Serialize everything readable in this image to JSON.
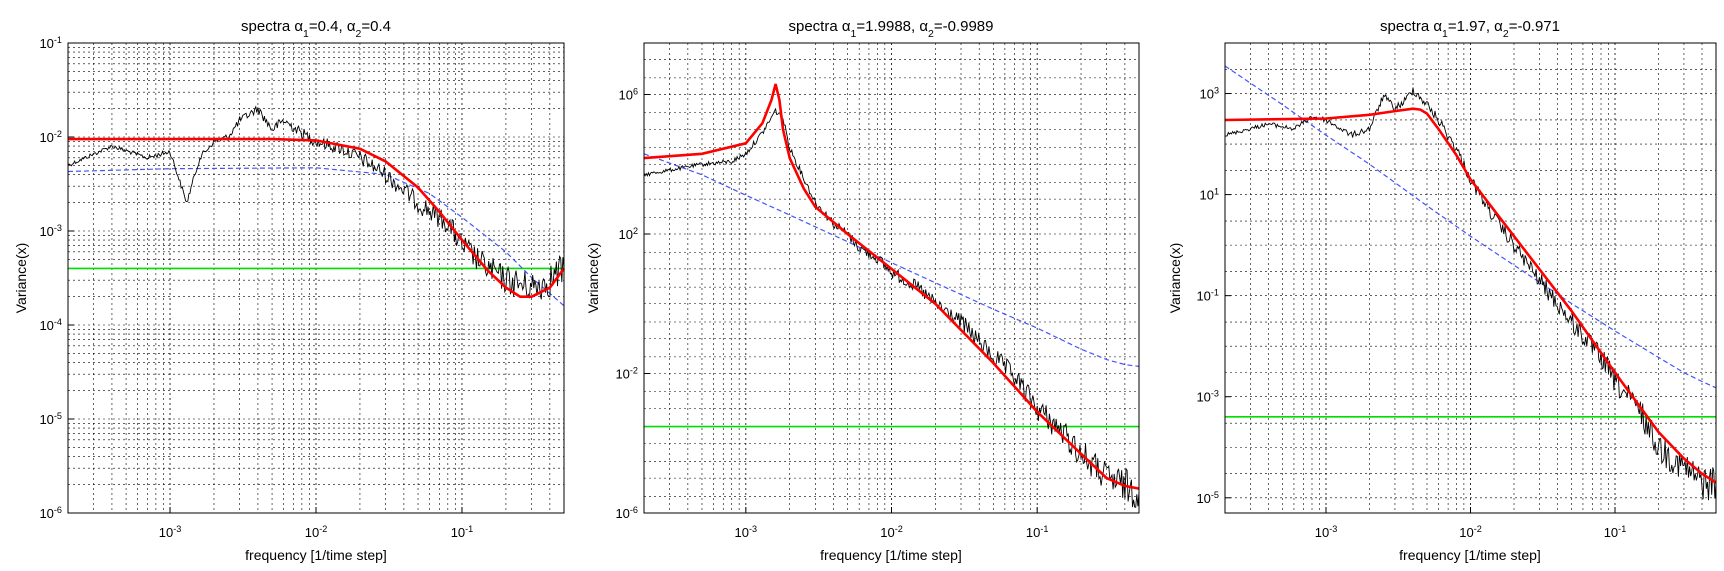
{
  "chart_data": [
    {
      "type": "line",
      "title_prefix": "spectra α",
      "title": "spectra α1=0.4, α2=0.4",
      "title_parts": [
        "spectra α",
        "1",
        "=0.4, α",
        "2",
        "=0.4"
      ],
      "xlabel": "frequency [1/time step]",
      "ylabel": "Variance(x)",
      "xscale": "log",
      "yscale": "log",
      "xlim": [
        0.0002,
        0.5
      ],
      "ylim": [
        1e-06,
        0.1
      ],
      "xticks": [
        0.001,
        0.01,
        0.1
      ],
      "xticklabels": [
        [
          "10",
          "-3"
        ],
        [
          "10",
          "-2"
        ],
        [
          "10",
          "-1"
        ]
      ],
      "yticks": [
        1e-06,
        1e-05,
        0.0001,
        0.001,
        0.01,
        0.1
      ],
      "yticklabels": [
        [
          "10",
          "-6"
        ],
        [
          "10",
          "-5"
        ],
        [
          "10",
          "-4"
        ],
        [
          "10",
          "-3"
        ],
        [
          "10",
          "-2"
        ],
        [
          "10",
          "-1"
        ]
      ],
      "grid": true,
      "series": [
        {
          "style": "red-smooth",
          "color": "#ff0000",
          "x": [
            0.0002,
            0.001,
            0.005,
            0.01,
            0.02,
            0.03,
            0.05,
            0.07,
            0.1,
            0.15,
            0.2,
            0.25,
            0.3,
            0.4,
            0.5
          ],
          "y": [
            0.0095,
            0.0095,
            0.0095,
            0.0092,
            0.0075,
            0.0055,
            0.0029,
            0.0016,
            0.0008,
            0.00038,
            0.00025,
            0.0002,
            0.0002,
            0.00025,
            0.0004
          ]
        },
        {
          "style": "blue-dashed",
          "color": "#4455ff",
          "x": [
            0.0002,
            0.001,
            0.01,
            0.03,
            0.06,
            0.1,
            0.2,
            0.3,
            0.5
          ],
          "y": [
            0.0043,
            0.0046,
            0.0047,
            0.004,
            0.0025,
            0.0014,
            0.0006,
            0.00032,
            0.00016
          ]
        },
        {
          "style": "green",
          "color": "#00dd00",
          "x": [
            0.0002,
            0.5
          ],
          "y": [
            0.0004,
            0.0004
          ]
        },
        {
          "style": "black-noisy",
          "color": "#000000",
          "x": [
            0.0002,
            0.0004,
            0.0007,
            0.001,
            0.0013,
            0.0016,
            0.002,
            0.0025,
            0.003,
            0.004,
            0.005,
            0.006,
            0.008,
            0.01,
            0.015,
            0.02,
            0.03,
            0.05,
            0.08,
            0.1,
            0.15,
            0.2,
            0.3,
            0.4,
            0.5
          ],
          "y": [
            0.005,
            0.008,
            0.006,
            0.007,
            0.002,
            0.006,
            0.009,
            0.01,
            0.015,
            0.02,
            0.012,
            0.015,
            0.011,
            0.009,
            0.0075,
            0.006,
            0.004,
            0.002,
            0.0012,
            0.0007,
            0.0004,
            0.0003,
            0.00025,
            0.0003,
            0.0004
          ]
        }
      ]
    },
    {
      "type": "line",
      "title": "spectra α1=1.9988, α2=-0.9989",
      "title_parts": [
        "spectra α",
        "1",
        "=1.9988, α",
        "2",
        "=-0.9989"
      ],
      "xlabel": "frequency [1/time step]",
      "ylabel": "Variance(x)",
      "xscale": "log",
      "yscale": "log",
      "xlim": [
        0.0002,
        0.5
      ],
      "ylim": [
        1e-06,
        30000000
      ],
      "xticks": [
        0.001,
        0.01,
        0.1
      ],
      "xticklabels": [
        [
          "10",
          "-3"
        ],
        [
          "10",
          "-2"
        ],
        [
          "10",
          "-1"
        ]
      ],
      "yticks": [
        1e-06,
        0.01,
        100,
        1000000
      ],
      "yticklabels": [
        [
          "10",
          "-6"
        ],
        [
          "10",
          "-2"
        ],
        [
          "10",
          "2"
        ],
        [
          "10",
          "6"
        ]
      ],
      "grid": true,
      "series": [
        {
          "style": "red-smooth",
          "color": "#ff0000",
          "x": [
            0.0002,
            0.0005,
            0.001,
            0.0013,
            0.0015,
            0.0016,
            0.0017,
            0.0018,
            0.002,
            0.0025,
            0.003,
            0.005,
            0.01,
            0.02,
            0.05,
            0.1,
            0.2,
            0.3,
            0.4,
            0.5
          ],
          "y": [
            15000,
            20000,
            40000,
            150000,
            700000,
            2000000,
            700000,
            100000,
            15000,
            2000,
            600,
            100,
            10,
            1,
            0.02,
            0.0008,
            5e-05,
            1e-05,
            6e-06,
            5e-06
          ]
        },
        {
          "style": "blue-dashed",
          "color": "#4455ff",
          "x": [
            0.0002,
            0.0005,
            0.001,
            0.002,
            0.005,
            0.01,
            0.02,
            0.05,
            0.1,
            0.2,
            0.3,
            0.4,
            0.5
          ],
          "y": [
            20000,
            5000,
            1300,
            350,
            60,
            15,
            4,
            0.7,
            0.2,
            0.05,
            0.025,
            0.018,
            0.016
          ]
        },
        {
          "style": "green",
          "color": "#00dd00",
          "x": [
            0.0002,
            0.5
          ],
          "y": [
            0.0003,
            0.0003
          ]
        },
        {
          "style": "black-noisy",
          "color": "#000000",
          "x": [
            0.0002,
            0.0005,
            0.0008,
            0.001,
            0.0013,
            0.0016,
            0.0018,
            0.002,
            0.0025,
            0.003,
            0.004,
            0.005,
            0.006,
            0.008,
            0.01,
            0.015,
            0.02,
            0.03,
            0.05,
            0.07,
            0.1,
            0.15,
            0.2,
            0.3,
            0.4,
            0.5
          ],
          "y": [
            5000,
            10000,
            12000,
            20000,
            80000,
            350000,
            200000,
            30000,
            4000,
            800,
            200,
            100,
            40,
            20,
            8,
            3,
            1,
            0.3,
            0.03,
            0.008,
            0.001,
            0.0002,
            5e-05,
            1e-05,
            6e-06,
            4e-06
          ]
        }
      ]
    },
    {
      "type": "line",
      "title": "spectra α1=1.97, α2=-0.971",
      "title_parts": [
        "spectra α",
        "1",
        "=1.97, α",
        "2",
        "=-0.971"
      ],
      "xlabel": "frequency [1/time step]",
      "ylabel": "Variance(x)",
      "xscale": "log",
      "yscale": "log",
      "xlim": [
        0.0002,
        0.5
      ],
      "ylim": [
        5e-06,
        10000
      ],
      "xticks": [
        0.001,
        0.01,
        0.1
      ],
      "xticklabels": [
        [
          "10",
          "-3"
        ],
        [
          "10",
          "-2"
        ],
        [
          "10",
          "-1"
        ]
      ],
      "yticks": [
        1e-05,
        0.001,
        0.1,
        10,
        1000
      ],
      "yticklabels": [
        [
          "10",
          "-5"
        ],
        [
          "10",
          "-3"
        ],
        [
          "10",
          "-1"
        ],
        [
          "10",
          "1"
        ],
        [
          "10",
          "3"
        ]
      ],
      "grid": true,
      "series": [
        {
          "style": "red-smooth",
          "color": "#ff0000",
          "x": [
            0.0002,
            0.001,
            0.002,
            0.003,
            0.004,
            0.0045,
            0.005,
            0.006,
            0.008,
            0.01,
            0.02,
            0.05,
            0.1,
            0.2,
            0.3,
            0.4,
            0.5
          ],
          "y": [
            300,
            320,
            380,
            450,
            500,
            480,
            400,
            200,
            60,
            20,
            1.5,
            0.05,
            0.003,
            0.0002,
            6e-05,
            3e-05,
            2e-05
          ]
        },
        {
          "style": "blue-dashed",
          "color": "#4455ff",
          "x": [
            0.0002,
            0.0005,
            0.001,
            0.002,
            0.005,
            0.01,
            0.02,
            0.05,
            0.1,
            0.2,
            0.3,
            0.4,
            0.5
          ],
          "y": [
            3500,
            600,
            150,
            40,
            6,
            1.5,
            0.4,
            0.07,
            0.02,
            0.006,
            0.003,
            0.002,
            0.0015
          ]
        },
        {
          "style": "green",
          "color": "#00dd00",
          "x": [
            0.0002,
            0.5
          ],
          "y": [
            0.0004,
            0.0004
          ]
        },
        {
          "style": "black-noisy",
          "color": "#000000",
          "x": [
            0.0002,
            0.0004,
            0.0006,
            0.0008,
            0.001,
            0.0015,
            0.002,
            0.0025,
            0.003,
            0.0035,
            0.004,
            0.005,
            0.006,
            0.008,
            0.01,
            0.015,
            0.02,
            0.03,
            0.05,
            0.08,
            0.1,
            0.15,
            0.2,
            0.3,
            0.4,
            0.5
          ],
          "y": [
            150,
            250,
            200,
            350,
            300,
            150,
            200,
            900,
            500,
            700,
            1200,
            600,
            300,
            80,
            20,
            3,
            1,
            0.2,
            0.03,
            0.006,
            0.002,
            0.0005,
            0.0001,
            4e-05,
            2e-05,
            2e-05
          ]
        }
      ]
    }
  ]
}
